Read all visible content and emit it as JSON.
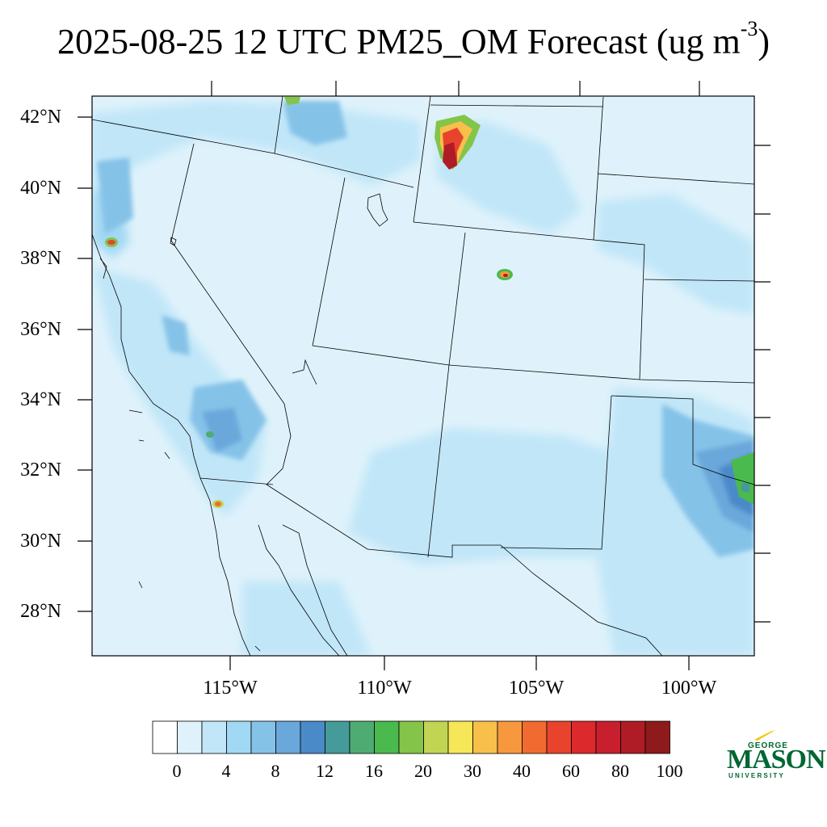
{
  "title": {
    "main": "2025-08-25 12 UTC PM25_OM Forecast (ug m",
    "sup": "-3",
    "tail": ")"
  },
  "map": {
    "lat_labels": [
      "42°N",
      "40°N",
      "38°N",
      "36°N",
      "34°N",
      "32°N",
      "30°N",
      "28°N"
    ],
    "lon_labels": [
      "115°W",
      "110°W",
      "105°W",
      "100°W"
    ]
  },
  "colorbar": {
    "colors": [
      "#ffffff",
      "#dff2fb",
      "#c0e6f8",
      "#a1d8f3",
      "#85c2e8",
      "#6aa7db",
      "#4b8ac9",
      "#459b99",
      "#4eac72",
      "#4bba4e",
      "#84c449",
      "#c2d553",
      "#f6e758",
      "#f8c04b",
      "#f7983f",
      "#f16b31",
      "#e8442d",
      "#dc2a2c",
      "#c71f2e",
      "#b01c25",
      "#8e1a1c"
    ],
    "labels": [
      "0",
      "4",
      "8",
      "12",
      "16",
      "20",
      "30",
      "40",
      "60",
      "80",
      "100"
    ]
  },
  "logo": {
    "line1": "GEORGE",
    "line2": "MASON",
    "line3": "UNIVERSITY",
    "color": "#006633",
    "accent": "#f2c500"
  }
}
